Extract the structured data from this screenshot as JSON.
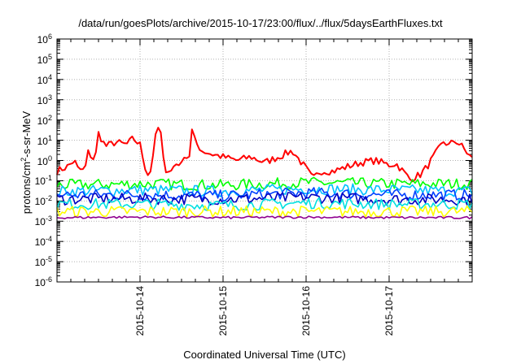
{
  "chart_data": {
    "type": "line",
    "title": "/data/run/goesPlots/archive/2015-10-17/23:00/flux/../flux/5daysEarthFluxes.txt",
    "xlabel": "Coordinated Universal Time (UTC)",
    "ylabel": {
      "base": "protons/cm",
      "exp": "2",
      "rest": "-s-sr-MeV"
    },
    "yscale": "log",
    "ylim": [
      1e-06,
      1000000.0
    ],
    "xlim": [
      "2015-10-13T00:00",
      "2015-10-18T00:00"
    ],
    "grid": true,
    "legend": "none",
    "yticks": [
      {
        "base": "10",
        "exp": "-6",
        "value": 1e-06
      },
      {
        "base": "10",
        "exp": "-5",
        "value": 1e-05
      },
      {
        "base": "10",
        "exp": "-4",
        "value": 0.0001
      },
      {
        "base": "10",
        "exp": "-3",
        "value": 0.001
      },
      {
        "base": "10",
        "exp": "-2",
        "value": 0.01
      },
      {
        "base": "10",
        "exp": "-1",
        "value": 0.1
      },
      {
        "base": "10",
        "exp": "0",
        "value": 1
      },
      {
        "base": "10",
        "exp": "1",
        "value": 10
      },
      {
        "base": "10",
        "exp": "2",
        "value": 100
      },
      {
        "base": "10",
        "exp": "3",
        "value": 1000
      },
      {
        "base": "10",
        "exp": "4",
        "value": 10000
      },
      {
        "base": "10",
        "exp": "5",
        "value": 100000
      },
      {
        "base": "10",
        "exp": "6",
        "value": 1000000
      }
    ],
    "xticks": [
      "2015-10-14",
      "2015-10-15",
      "2015-10-16",
      "2015-10-17"
    ],
    "series": [
      {
        "color": "#ff0000",
        "points": [
          [
            "2015-10-13T00:00",
            0.3
          ],
          [
            "2015-10-13T03:00",
            0.5
          ],
          [
            "2015-10-13T05:00",
            1.0
          ],
          [
            "2015-10-13T06:00",
            0.4
          ],
          [
            "2015-10-13T08:00",
            0.3
          ],
          [
            "2015-10-13T09:00",
            2.5
          ],
          [
            "2015-10-13T11:00",
            1.0
          ],
          [
            "2015-10-13T12:00",
            22
          ],
          [
            "2015-10-13T14:00",
            5
          ],
          [
            "2015-10-13T17:00",
            8
          ],
          [
            "2015-10-13T20:00",
            6
          ],
          [
            "2015-10-13T22:00",
            12
          ],
          [
            "2015-10-14T00:00",
            6
          ],
          [
            "2015-10-14T02:00",
            0.2
          ],
          [
            "2015-10-14T03:00",
            0.3
          ],
          [
            "2015-10-14T05:00",
            50
          ],
          [
            "2015-10-14T06:00",
            20
          ],
          [
            "2015-10-14T07:00",
            0.4
          ],
          [
            "2015-10-14T09:00",
            0.3
          ],
          [
            "2015-10-14T10:00",
            0.6
          ],
          [
            "2015-10-14T11:00",
            0.8
          ],
          [
            "2015-10-14T12:00",
            0.6
          ],
          [
            "2015-10-14T13:00",
            3
          ],
          [
            "2015-10-14T14:00",
            0.7
          ],
          [
            "2015-10-14T15:00",
            30
          ],
          [
            "2015-10-14T16:00",
            8
          ],
          [
            "2015-10-14T18:00",
            3
          ],
          [
            "2015-10-14T21:00",
            2
          ],
          [
            "2015-10-15T00:00",
            1.5
          ],
          [
            "2015-10-15T04:00",
            1.0
          ],
          [
            "2015-10-15T08:00",
            1.5
          ],
          [
            "2015-10-15T12:00",
            0.8
          ],
          [
            "2015-10-15T16:00",
            1.5
          ],
          [
            "2015-10-15T20:00",
            3
          ],
          [
            "2015-10-16T00:00",
            0.4
          ],
          [
            "2015-10-16T02:00",
            0.12
          ],
          [
            "2015-10-16T04:00",
            0.3
          ],
          [
            "2015-10-16T08:00",
            0.3
          ],
          [
            "2015-10-16T12:00",
            0.5
          ],
          [
            "2015-10-16T16:00",
            0.8
          ],
          [
            "2015-10-16T20:00",
            1.0
          ],
          [
            "2015-10-17T00:00",
            0.6
          ],
          [
            "2015-10-17T02:00",
            0.7
          ],
          [
            "2015-10-17T04:00",
            0.3
          ],
          [
            "2015-10-17T06:00",
            0.12
          ],
          [
            "2015-10-17T09:00",
            0.2
          ],
          [
            "2015-10-17T11:00",
            0.5
          ],
          [
            "2015-10-17T14:00",
            3
          ],
          [
            "2015-10-17T16:00",
            10
          ],
          [
            "2015-10-17T17:00",
            5
          ],
          [
            "2015-10-17T19:00",
            10
          ],
          [
            "2015-10-17T21:00",
            5
          ],
          [
            "2015-10-18T00:00",
            1.2
          ]
        ]
      },
      {
        "color": "#00ff00",
        "points": [
          [
            "2015-10-13T00:00",
            0.06
          ],
          [
            "2015-10-14T00:00",
            0.07
          ],
          [
            "2015-10-15T00:00",
            0.06
          ],
          [
            "2015-10-16T00:00",
            0.08
          ],
          [
            "2015-10-17T00:00",
            0.07
          ],
          [
            "2015-10-18T00:00",
            0.07
          ]
        ]
      },
      {
        "color": "#00c0ff",
        "points": [
          [
            "2015-10-13T00:00",
            0.03
          ],
          [
            "2015-10-14T00:00",
            0.035
          ],
          [
            "2015-10-15T00:00",
            0.03
          ],
          [
            "2015-10-16T00:00",
            0.04
          ],
          [
            "2015-10-17T00:00",
            0.035
          ],
          [
            "2015-10-18T00:00",
            0.03
          ]
        ]
      },
      {
        "color": "#0040ff",
        "points": [
          [
            "2015-10-13T00:00",
            0.02
          ],
          [
            "2015-10-14T00:00",
            0.02
          ],
          [
            "2015-10-15T00:00",
            0.018
          ],
          [
            "2015-10-16T00:00",
            0.025
          ],
          [
            "2015-10-17T00:00",
            0.02
          ],
          [
            "2015-10-18T00:00",
            0.02
          ]
        ]
      },
      {
        "color": "#0000c0",
        "points": [
          [
            "2015-10-13T00:00",
            0.012
          ],
          [
            "2015-10-14T00:00",
            0.013
          ],
          [
            "2015-10-15T00:00",
            0.012
          ],
          [
            "2015-10-16T00:00",
            0.015
          ],
          [
            "2015-10-17T00:00",
            0.012
          ],
          [
            "2015-10-18T00:00",
            0.012
          ]
        ]
      },
      {
        "color": "#00e0e0",
        "points": [
          [
            "2015-10-13T00:00",
            0.007
          ],
          [
            "2015-10-14T00:00",
            0.007
          ],
          [
            "2015-10-15T00:00",
            0.006
          ],
          [
            "2015-10-16T00:00",
            0.008
          ],
          [
            "2015-10-17T00:00",
            0.007
          ],
          [
            "2015-10-18T00:00",
            0.007
          ]
        ]
      },
      {
        "color": "#ffff00",
        "points": [
          [
            "2015-10-13T00:00",
            0.003
          ],
          [
            "2015-10-14T00:00",
            0.003
          ],
          [
            "2015-10-15T00:00",
            0.003
          ],
          [
            "2015-10-16T00:00",
            0.003
          ],
          [
            "2015-10-17T00:00",
            0.003
          ],
          [
            "2015-10-18T00:00",
            0.003
          ]
        ]
      },
      {
        "color": "#900090",
        "points": [
          [
            "2015-10-13T00:00",
            0.0015
          ],
          [
            "2015-10-14T00:00",
            0.0016
          ],
          [
            "2015-10-15T00:00",
            0.0015
          ],
          [
            "2015-10-16T00:00",
            0.0016
          ],
          [
            "2015-10-17T00:00",
            0.0015
          ],
          [
            "2015-10-18T00:00",
            0.0015
          ]
        ]
      }
    ]
  }
}
